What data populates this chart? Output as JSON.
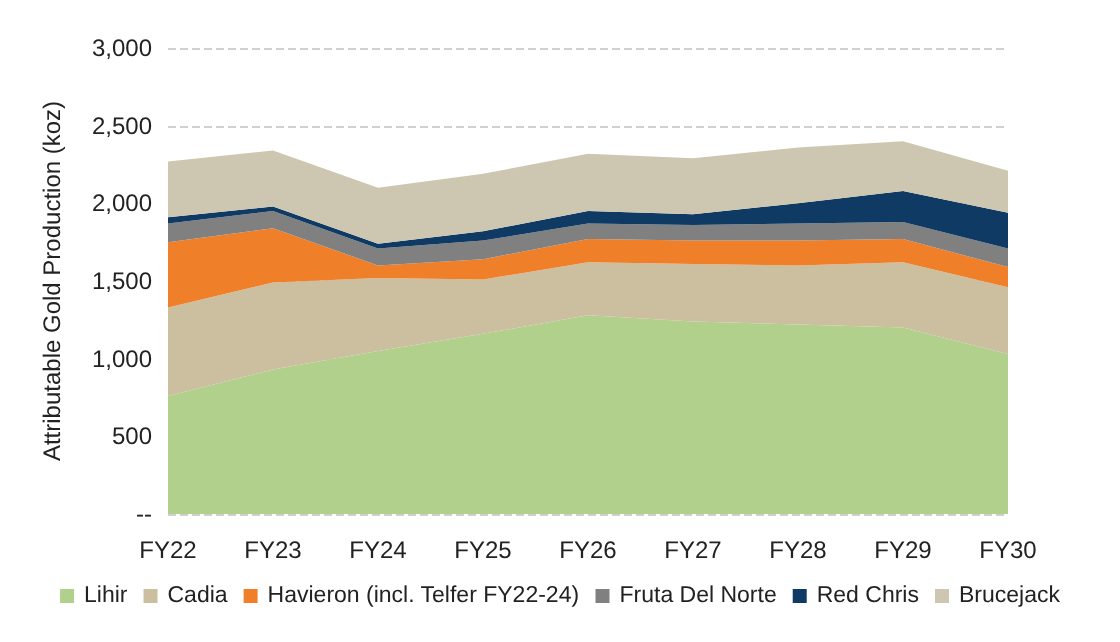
{
  "chart_data": {
    "type": "area",
    "stacked": true,
    "ylabel": "Attributable Gold Production (koz)",
    "categories": [
      "FY22",
      "FY23",
      "FY24",
      "FY25",
      "FY26",
      "FY27",
      "FY28",
      "FY29",
      "FY30"
    ],
    "series": [
      {
        "name": "Lihir",
        "color": "#b0d08c",
        "values": [
          760,
          930,
          1050,
          1160,
          1280,
          1240,
          1220,
          1200,
          1030
        ]
      },
      {
        "name": "Cadia",
        "color": "#cbbf9f",
        "values": [
          570,
          560,
          470,
          350,
          340,
          370,
          380,
          420,
          430
        ]
      },
      {
        "name": "Havieron (incl. Telfer FY22-24)",
        "color": "#f07f2a",
        "values": [
          420,
          350,
          80,
          130,
          150,
          150,
          160,
          150,
          130
        ]
      },
      {
        "name": "Fruta Del Norte",
        "color": "#808080",
        "values": [
          120,
          110,
          110,
          120,
          100,
          100,
          110,
          110,
          120
        ]
      },
      {
        "name": "Red Chris",
        "color": "#0f3a63",
        "values": [
          40,
          30,
          30,
          60,
          80,
          70,
          130,
          200,
          230
        ]
      },
      {
        "name": "Brucejack",
        "color": "#cdc6b0",
        "values": [
          360,
          360,
          360,
          370,
          370,
          360,
          360,
          320,
          270
        ]
      }
    ],
    "ylim": [
      0,
      3000
    ],
    "yticks": [
      {
        "value": 0,
        "label": "--"
      },
      500,
      {
        "value": 1000,
        "label": "1,000"
      },
      {
        "value": 1500,
        "label": "1,500"
      },
      {
        "value": 2000,
        "label": "2,000"
      },
      {
        "value": 2500,
        "label": "2,500"
      },
      {
        "value": 3000,
        "label": "3,000"
      }
    ],
    "grid": "y",
    "legend": "bottom"
  }
}
